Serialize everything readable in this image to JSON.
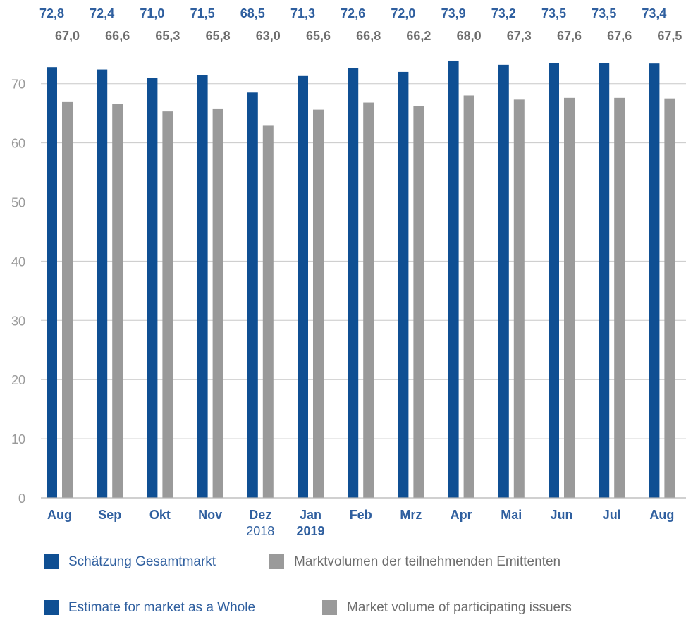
{
  "chart_data": {
    "type": "bar",
    "categories": [
      "Aug",
      "Sep",
      "Okt",
      "Nov",
      "Dez",
      "Jan",
      "Feb",
      "Mrz",
      "Apr",
      "Mai",
      "Jun",
      "Jul",
      "Aug"
    ],
    "category_sublabels": [
      "",
      "",
      "",
      "",
      "2018",
      "2019",
      "",
      "",
      "",
      "",
      "",
      "",
      ""
    ],
    "series": [
      {
        "name": "Schätzung Gesamtmarkt",
        "name_en": "Estimate for market as a Whole",
        "color": "#0f4f93",
        "values": [
          72.8,
          72.4,
          71.0,
          71.5,
          68.5,
          71.3,
          72.6,
          72.0,
          73.9,
          73.2,
          73.5,
          73.5,
          73.4
        ],
        "labels": [
          "72,8",
          "72,4",
          "71,0",
          "71,5",
          "68,5",
          "71,3",
          "72,6",
          "72,0",
          "73,9",
          "73,2",
          "73,5",
          "73,5",
          "73,4"
        ]
      },
      {
        "name": "Marktvolumen der teilnehmenden Emittenten",
        "name_en": "Market volume of participating issuers",
        "color": "#9a9a9a",
        "values": [
          67.0,
          66.6,
          65.3,
          65.8,
          63.0,
          65.6,
          66.8,
          66.2,
          68.0,
          67.3,
          67.6,
          67.6,
          67.5
        ],
        "labels": [
          "67,0",
          "66,6",
          "65,3",
          "65,8",
          "63,0",
          "65,6",
          "66,8",
          "66,2",
          "68,0",
          "67,3",
          "67,6",
          "67,6",
          "67,5"
        ]
      }
    ],
    "yticks": [
      0,
      10,
      20,
      30,
      40,
      50,
      60,
      70
    ],
    "ylim": [
      0,
      75
    ],
    "grid": true,
    "legend_placement": "bottom"
  },
  "colors": {
    "blue": "#0f4f93",
    "gray": "#9a9a9a",
    "blue_text": "#2f5f9f",
    "gray_text": "#6d6d6d",
    "axis": "#b3b3b3",
    "grid": "#c8c8c8",
    "tick_text": "#9a9a9a"
  }
}
